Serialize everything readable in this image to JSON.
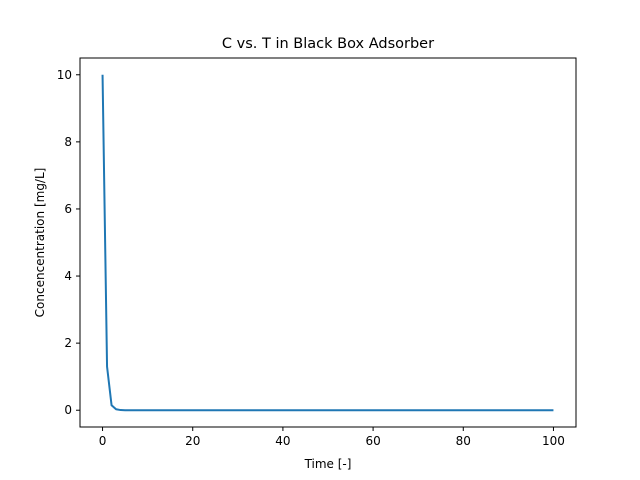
{
  "chart_data": {
    "type": "line",
    "title": "C vs. T in Black Box Adsorber",
    "xlabel": "Time [-]",
    "ylabel": "Concencentration [mg/L]",
    "xlim": [
      -5,
      105
    ],
    "ylim": [
      -0.5,
      10.5
    ],
    "xticks": [
      0,
      20,
      40,
      60,
      80,
      100
    ],
    "yticks": [
      0,
      2,
      4,
      6,
      8,
      10
    ],
    "grid": false,
    "series": [
      {
        "color": "#1f77b4",
        "x": [
          0,
          1,
          2,
          3,
          4,
          5,
          10,
          20,
          30,
          40,
          50,
          60,
          70,
          80,
          90,
          100
        ],
        "y": [
          10,
          1.3,
          0.15,
          0.03,
          0.005,
          0.001,
          0,
          0,
          0,
          0,
          0,
          0,
          0,
          0,
          0,
          0
        ]
      }
    ]
  }
}
